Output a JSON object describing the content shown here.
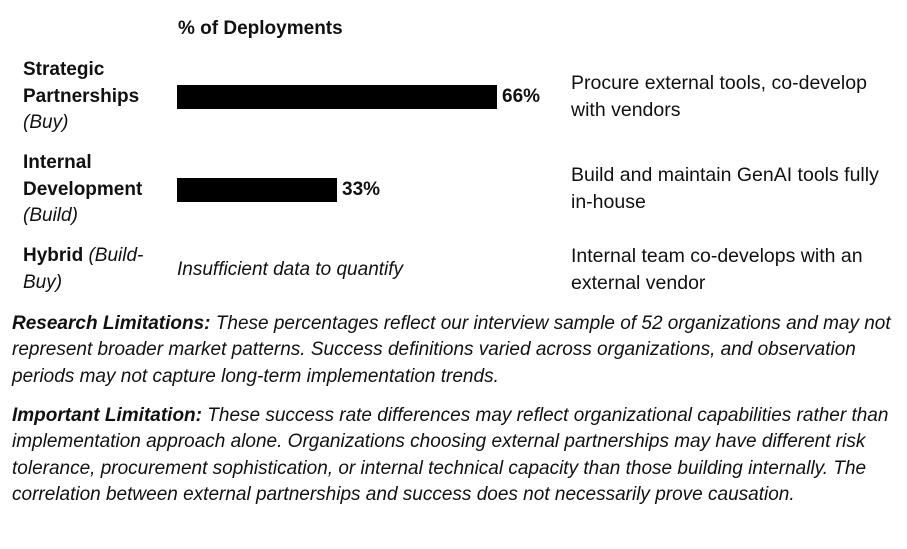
{
  "chart_data": {
    "type": "bar",
    "title": "% of Deployments",
    "categories": [
      "Strategic Partnerships (Buy)",
      "Internal Development (Build)",
      "Hybrid (Build-Buy)"
    ],
    "values": [
      66,
      33,
      null
    ],
    "value_labels": [
      "66%",
      "33%",
      ""
    ],
    "xlim": [
      0,
      100
    ],
    "missing_note": "Insufficient data to quantify"
  },
  "table": {
    "header": "% of Deployments",
    "rows": [
      {
        "name_main": "Strategic Partnerships",
        "name_sub": "(Buy)",
        "value": 66,
        "value_label": "66%",
        "description": "Procure external tools, co-develop with vendors"
      },
      {
        "name_main": "Internal Development",
        "name_sub": "(Build)",
        "value": 33,
        "value_label": "33%",
        "description": "Build and maintain GenAI tools fully in-house"
      },
      {
        "name_main": "Hybrid",
        "name_sub": "(Build-Buy)",
        "note": "Insufficient data to quantify",
        "description": "Internal team co-develops with an external vendor"
      }
    ]
  },
  "notes": {
    "research_label": "Research Limitations:",
    "research_text": "These percentages reflect our interview sample of 52 organizations and may not represent broader market patterns. Success definitions varied across organizations, and observation periods may not capture long-term implementation trends.",
    "important_label": "Important Limitation:",
    "important_text": "These success rate differences may reflect organizational capabilities rather than implementation approach alone. Organizations choosing external partnerships may have different risk tolerance, procurement sophistication, or internal technical capacity than those building internally. The correlation between external partnerships and success does not necessarily prove causation."
  }
}
